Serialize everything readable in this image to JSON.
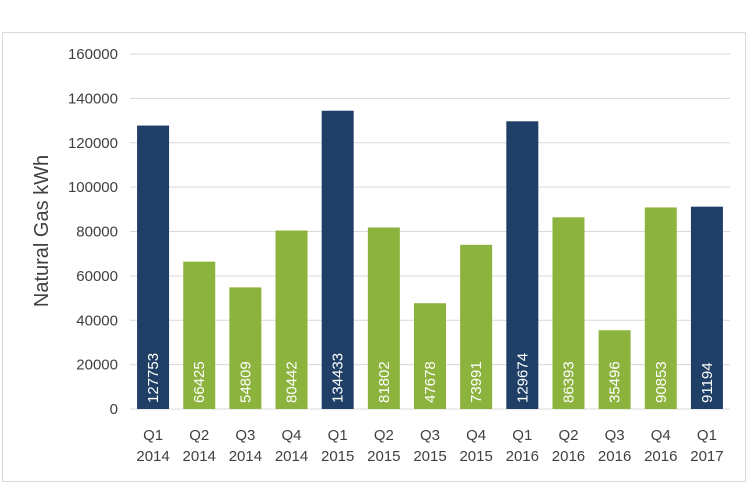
{
  "chart_data": {
    "type": "bar",
    "title": "",
    "xlabel": "",
    "ylabel": "Natural Gas kWh",
    "ylim": [
      0,
      160000
    ],
    "yticks": [
      0,
      20000,
      40000,
      60000,
      80000,
      100000,
      120000,
      140000,
      160000
    ],
    "grid": true,
    "legend": "none",
    "categories": [
      {
        "quarter": "Q1",
        "year": "2014"
      },
      {
        "quarter": "Q2",
        "year": "2014"
      },
      {
        "quarter": "Q3",
        "year": "2014"
      },
      {
        "quarter": "Q4",
        "year": "2014"
      },
      {
        "quarter": "Q1",
        "year": "2015"
      },
      {
        "quarter": "Q2",
        "year": "2015"
      },
      {
        "quarter": "Q3",
        "year": "2015"
      },
      {
        "quarter": "Q4",
        "year": "2015"
      },
      {
        "quarter": "Q1",
        "year": "2016"
      },
      {
        "quarter": "Q2",
        "year": "2016"
      },
      {
        "quarter": "Q3",
        "year": "2016"
      },
      {
        "quarter": "Q4",
        "year": "2016"
      },
      {
        "quarter": "Q1",
        "year": "2017"
      }
    ],
    "values": [
      127753,
      66425,
      54809,
      80442,
      134433,
      81802,
      47678,
      73991,
      129674,
      86393,
      35496,
      90853,
      91194
    ],
    "colors": {
      "Q1": "#1f3f66",
      "other": "#8db33f",
      "grid": "#d9d9d9",
      "text": "#404040",
      "label": "#ffffff"
    }
  }
}
